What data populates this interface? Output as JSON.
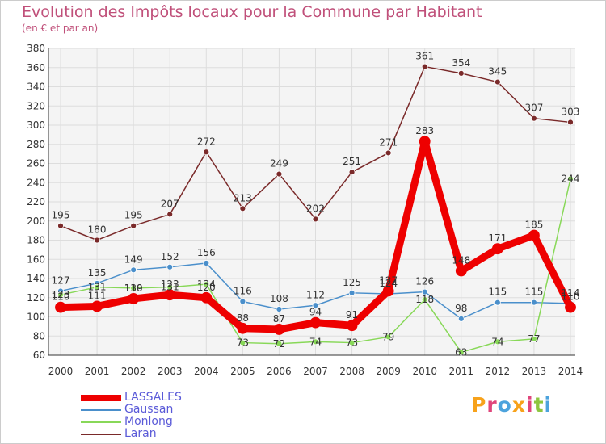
{
  "title": "Evolution des Impôts locaux pour la Commune par Habitant",
  "subtitle": "(en € et par an)",
  "logo": {
    "text": "Proxiti",
    "colors": [
      "#f7a21b",
      "#e0457b",
      "#4ca3dd",
      "#f7a21b",
      "#e0457b",
      "#8dc63f",
      "#4ca3dd"
    ]
  },
  "chart_data": {
    "type": "line",
    "title": "Evolution des Impôts locaux pour la Commune par Habitant",
    "subtitle": "(en € et par an)",
    "categories": [
      "2000",
      "2001",
      "2002",
      "2003",
      "2004",
      "2005",
      "2006",
      "2007",
      "2008",
      "2009",
      "2010",
      "2011",
      "2012",
      "2013",
      "2014"
    ],
    "ylim": [
      60,
      380
    ],
    "yticks": [
      60,
      80,
      100,
      120,
      140,
      160,
      180,
      200,
      220,
      240,
      260,
      280,
      300,
      320,
      340,
      360,
      380
    ],
    "grid": true,
    "legend_position": "bottom-left",
    "series": [
      {
        "name": "Laran",
        "color": "#7a2a2a",
        "values": [
          195,
          180,
          195,
          207,
          272,
          213,
          249,
          202,
          251,
          271,
          361,
          354,
          345,
          307,
          303
        ]
      },
      {
        "name": "Gaussan",
        "color": "#4a8fcb",
        "values": [
          127,
          135,
          149,
          152,
          156,
          116,
          108,
          112,
          125,
          124,
          126,
          98,
          115,
          115,
          114
        ]
      },
      {
        "name": "Monlong",
        "color": "#88d858",
        "values": [
          123,
          131,
          130,
          131,
          134,
          73,
          72,
          74,
          73,
          79,
          118,
          63,
          74,
          77,
          244
        ]
      },
      {
        "name": "LASSALES",
        "color": "#ee0000",
        "values": [
          110,
          111,
          119,
          123,
          120,
          88,
          87,
          94,
          91,
          127,
          283,
          148,
          171,
          185,
          110
        ]
      }
    ],
    "legend": [
      "LASSALES",
      "Gaussan",
      "Monlong",
      "Laran"
    ]
  }
}
